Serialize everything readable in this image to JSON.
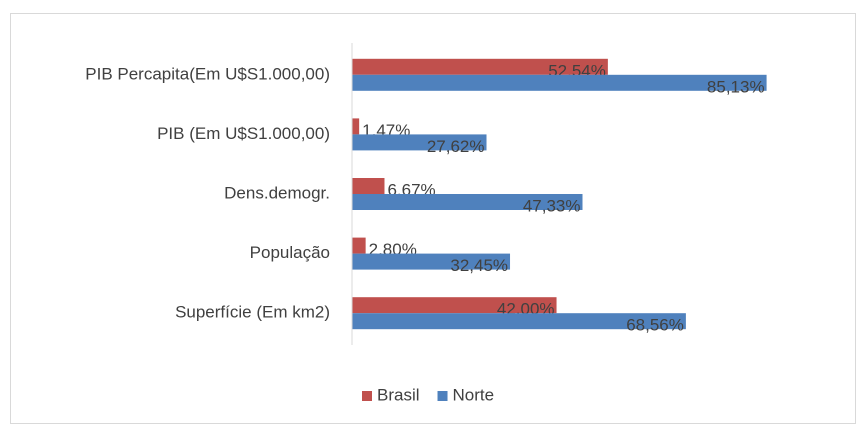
{
  "chart_data": {
    "type": "bar",
    "orientation": "horizontal",
    "categories": [
      "PIB Percapita(Em U$S1.000,00)",
      "PIB (Em U$S1.000,00)",
      "Dens.demogr.",
      "População",
      "Superfície (Em km2)"
    ],
    "series": [
      {
        "name": "Brasil",
        "color": "#c0504d",
        "values": [
          52.54,
          1.47,
          6.67,
          2.8,
          42.0
        ],
        "value_labels": [
          "52,54%",
          "1,47%",
          "6,67%",
          "2,80%",
          "42,00%"
        ]
      },
      {
        "name": "Norte",
        "color": "#4f81bd",
        "values": [
          85.13,
          27.62,
          47.33,
          32.45,
          68.56
        ],
        "value_labels": [
          "85,13%",
          "27,62%",
          "47,33%",
          "32,45%",
          "68,56%"
        ]
      }
    ],
    "xlim": [
      0,
      100
    ],
    "legend": "bottom"
  }
}
